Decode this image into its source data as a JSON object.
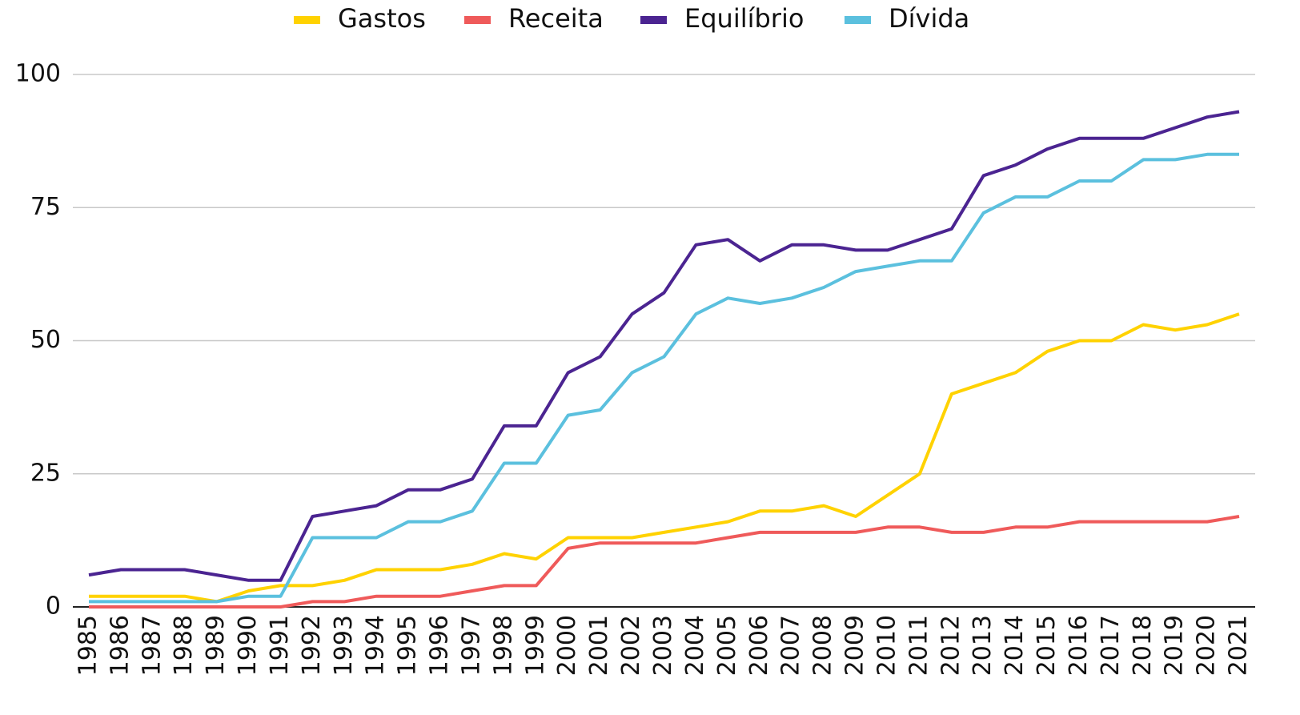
{
  "chart_data": {
    "type": "line",
    "categories": [
      "1985",
      "1986",
      "1987",
      "1988",
      "1989",
      "1990",
      "1991",
      "1992",
      "1993",
      "1994",
      "1995",
      "1996",
      "1997",
      "1998",
      "1999",
      "2000",
      "2001",
      "2002",
      "2003",
      "2004",
      "2005",
      "2006",
      "2007",
      "2008",
      "2009",
      "2010",
      "2011",
      "2012",
      "2013",
      "2014",
      "2015",
      "2016",
      "2017",
      "2018",
      "2019",
      "2020",
      "2021"
    ],
    "series": [
      {
        "name": "Gastos",
        "color": "#ffd200",
        "values": [
          2,
          2,
          2,
          2,
          1,
          3,
          4,
          4,
          5,
          7,
          7,
          7,
          8,
          10,
          9,
          13,
          13,
          13,
          14,
          15,
          16,
          18,
          18,
          19,
          17,
          21,
          25,
          40,
          42,
          44,
          48,
          50,
          50,
          53,
          52,
          53,
          55
        ]
      },
      {
        "name": "Receita",
        "color": "#ef5a5a",
        "values": [
          0,
          0,
          0,
          0,
          0,
          0,
          0,
          1,
          1,
          2,
          2,
          2,
          3,
          4,
          4,
          11,
          12,
          12,
          12,
          12,
          13,
          14,
          14,
          14,
          14,
          15,
          15,
          14,
          14,
          15,
          15,
          16,
          16,
          16,
          16,
          16,
          17
        ]
      },
      {
        "name": "Equilíbrio",
        "color": "#4b2491",
        "values": [
          6,
          7,
          7,
          7,
          6,
          5,
          5,
          17,
          18,
          19,
          22,
          22,
          24,
          34,
          34,
          44,
          47,
          55,
          59,
          68,
          69,
          65,
          68,
          68,
          67,
          67,
          69,
          71,
          81,
          83,
          86,
          88,
          88,
          88,
          90,
          92,
          93
        ]
      },
      {
        "name": "Dívida",
        "color": "#5bc0de",
        "values": [
          1,
          1,
          1,
          1,
          1,
          2,
          2,
          13,
          13,
          13,
          16,
          16,
          18,
          27,
          27,
          36,
          37,
          44,
          47,
          55,
          58,
          57,
          58,
          60,
          63,
          64,
          65,
          65,
          74,
          77,
          77,
          80,
          80,
          84,
          84,
          85,
          85
        ]
      }
    ],
    "ylim": [
      0,
      100
    ],
    "yticks": [
      0,
      25,
      50,
      75,
      100
    ],
    "grid": true
  }
}
